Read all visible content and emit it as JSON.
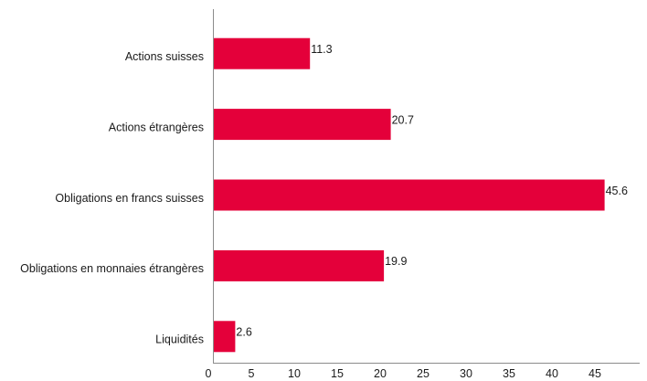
{
  "chart_data": {
    "type": "bar",
    "orientation": "horizontal",
    "categories": [
      "Actions suisses",
      "Actions étrangères",
      "Obligations en francs suisses",
      "Obligations en monnaies étrangères",
      "Liquidités"
    ],
    "values": [
      11.3,
      20.7,
      45.6,
      19.9,
      2.6
    ],
    "value_labels": [
      "11.3",
      "20.7",
      "45.6",
      "19.9",
      "2.6"
    ],
    "xlim": [
      0,
      50
    ],
    "xticks": [
      0,
      5,
      10,
      15,
      20,
      25,
      30,
      35,
      40,
      45
    ],
    "grid": false,
    "legend": "none",
    "bar_color": "#e4003a",
    "axis_color": "#8c8c8c"
  }
}
